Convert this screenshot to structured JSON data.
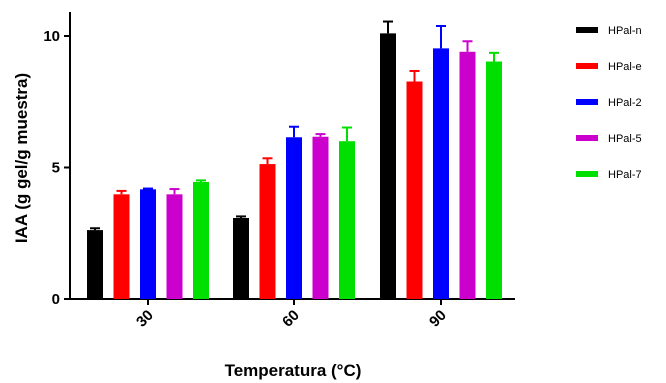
{
  "chart_data": {
    "type": "bar",
    "xlabel": "Temperatura (°C)",
    "ylabel": "IAA (g gel/g muestra)",
    "ylim": [
      0,
      11
    ],
    "yticks": [
      0,
      5,
      10
    ],
    "categories": [
      "30",
      "60",
      "90"
    ],
    "legend_position": "right",
    "series": [
      {
        "name": "HPal-n",
        "color": "#000000",
        "values": [
          2.62,
          3.08,
          10.1
        ],
        "errors": [
          0.07,
          0.06,
          0.45
        ]
      },
      {
        "name": "HPal-e",
        "color": "#ff0000",
        "values": [
          3.98,
          5.13,
          8.27
        ],
        "errors": [
          0.13,
          0.22,
          0.4
        ]
      },
      {
        "name": "HPal-2",
        "color": "#0000ff",
        "values": [
          4.17,
          6.15,
          9.53
        ],
        "errors": [
          0.03,
          0.4,
          0.85
        ]
      },
      {
        "name": "HPal-5",
        "color": "#cc00cc",
        "values": [
          3.98,
          6.17,
          9.4
        ],
        "errors": [
          0.2,
          0.1,
          0.4
        ]
      },
      {
        "name": "HPal-7",
        "color": "#00e000",
        "values": [
          4.45,
          6.0,
          9.03
        ],
        "errors": [
          0.06,
          0.52,
          0.33
        ]
      }
    ]
  }
}
